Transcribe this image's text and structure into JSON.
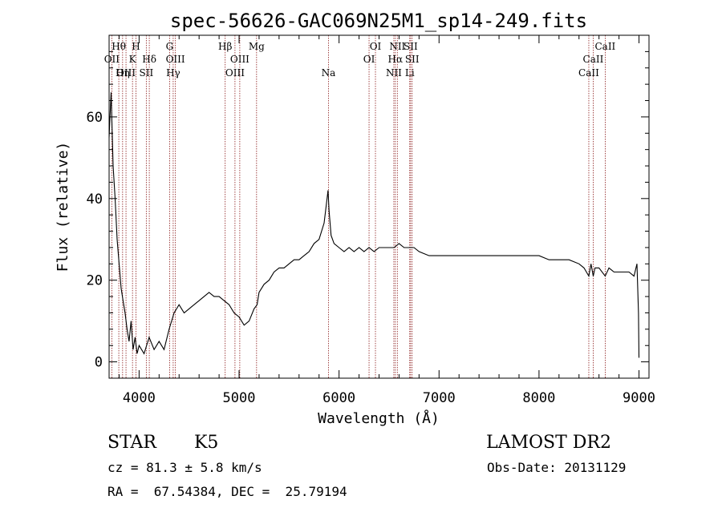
{
  "chart_data": {
    "type": "line",
    "title": "spec-56626-GAC069N25M1_sp14-249.fits",
    "xlabel": "Wavelength (Å)",
    "ylabel": "Flux (relative)",
    "xlim": [
      3700,
      9100
    ],
    "ylim": [
      -4,
      80
    ],
    "x_ticks": [
      4000,
      5000,
      6000,
      7000,
      8000,
      9000
    ],
    "y_ticks": [
      0,
      20,
      40,
      60
    ],
    "grid": false,
    "series": [
      {
        "color": "#000000",
        "x": [
          3700,
          3720,
          3740,
          3760,
          3780,
          3800,
          3820,
          3840,
          3860,
          3880,
          3900,
          3920,
          3940,
          3960,
          3980,
          4000,
          4050,
          4100,
          4150,
          4200,
          4250,
          4300,
          4350,
          4400,
          4450,
          4500,
          4550,
          4600,
          4650,
          4700,
          4750,
          4800,
          4850,
          4900,
          4950,
          5000,
          5050,
          5100,
          5150,
          5180,
          5200,
          5250,
          5300,
          5350,
          5400,
          5450,
          5500,
          5550,
          5600,
          5650,
          5700,
          5750,
          5800,
          5850,
          5880,
          5890,
          5900,
          5920,
          5950,
          6000,
          6050,
          6100,
          6150,
          6200,
          6250,
          6300,
          6350,
          6400,
          6450,
          6500,
          6550,
          6600,
          6650,
          6700,
          6750,
          6800,
          6900,
          7000,
          7100,
          7200,
          7300,
          7400,
          7500,
          7600,
          7700,
          7800,
          7900,
          8000,
          8100,
          8200,
          8300,
          8400,
          8450,
          8498,
          8520,
          8542,
          8560,
          8600,
          8662,
          8700,
          8750,
          8800,
          8850,
          8900,
          8950,
          8980,
          8995,
          9000
        ],
        "y": [
          55,
          66,
          48,
          40,
          30,
          24,
          18,
          15,
          12,
          8,
          5,
          10,
          3,
          6,
          2,
          4,
          2,
          6,
          3,
          5,
          3,
          8,
          12,
          14,
          12,
          13,
          14,
          15,
          16,
          17,
          16,
          16,
          15,
          14,
          12,
          11,
          9,
          10,
          13,
          14,
          17,
          19,
          20,
          22,
          23,
          23,
          24,
          25,
          25,
          26,
          27,
          29,
          30,
          34,
          40,
          42,
          37,
          31,
          29,
          28,
          27,
          28,
          27,
          28,
          27,
          28,
          27,
          28,
          28,
          28,
          28,
          29,
          28,
          28,
          28,
          27,
          26,
          26,
          26,
          26,
          26,
          26,
          26,
          26,
          26,
          26,
          26,
          26,
          25,
          25,
          25,
          24,
          23,
          21,
          24,
          21,
          23,
          23,
          21,
          23,
          22,
          22,
          22,
          22,
          21,
          24,
          12,
          1
        ]
      }
    ],
    "spectral_lines": [
      {
        "label": "OII",
        "wavelength": 3727,
        "row": 2
      },
      {
        "label": "Hθ",
        "wavelength": 3797,
        "row": 1
      },
      {
        "label": "OIII",
        "wavelength": 3869,
        "row": 3
      },
      {
        "label": "Hη",
        "wavelength": 3835,
        "row": 3
      },
      {
        "label": "K",
        "wavelength": 3934,
        "row": 2
      },
      {
        "label": "H",
        "wavelength": 3969,
        "row": 1
      },
      {
        "label": "Hδ",
        "wavelength": 4102,
        "row": 2
      },
      {
        "label": "SII",
        "wavelength": 4072,
        "row": 3
      },
      {
        "label": "G",
        "wavelength": 4305,
        "row": 1
      },
      {
        "label": "OIII",
        "wavelength": 4363,
        "row": 2
      },
      {
        "label": "Hγ",
        "wavelength": 4341,
        "row": 3
      },
      {
        "label": "Hβ",
        "wavelength": 4861,
        "row": 1
      },
      {
        "label": "OIII",
        "wavelength": 4959,
        "row": 3
      },
      {
        "label": "OIII",
        "wavelength": 5007,
        "row": 2
      },
      {
        "label": "Mg",
        "wavelength": 5175,
        "row": 1
      },
      {
        "label": "Na",
        "wavelength": 5894,
        "row": 3
      },
      {
        "label": "OI",
        "wavelength": 6300,
        "row": 2
      },
      {
        "label": "OI",
        "wavelength": 6364,
        "row": 1
      },
      {
        "label": "NII",
        "wavelength": 6548,
        "row": 3
      },
      {
        "label": "Hα",
        "wavelength": 6563,
        "row": 2
      },
      {
        "label": "NII",
        "wavelength": 6583,
        "row": 1
      },
      {
        "label": "SII",
        "wavelength": 6716,
        "row": 1
      },
      {
        "label": "SII",
        "wavelength": 6731,
        "row": 2
      },
      {
        "label": "Li",
        "wavelength": 6707,
        "row": 3
      },
      {
        "label": "CaII",
        "wavelength": 8498,
        "row": 3
      },
      {
        "label": "CaII",
        "wavelength": 8542,
        "row": 2
      },
      {
        "label": "CaII",
        "wavelength": 8662,
        "row": 1
      }
    ]
  },
  "info": {
    "object_class": "STAR",
    "subclass": "K5",
    "survey": "LAMOST DR2",
    "redshift": "cz = 81.3 ± 5.8 km/s",
    "obs_date": "Obs-Date: 20131129",
    "coords": "RA =  67.54384, DEC =  25.79194"
  },
  "colors": {
    "spectrum": "#000000",
    "line_markers": "#8b1a1a"
  }
}
